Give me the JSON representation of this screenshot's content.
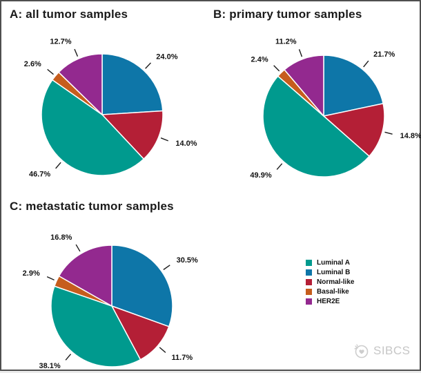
{
  "legend": {
    "items": [
      {
        "label": "Luminal A",
        "color": "#009a8e"
      },
      {
        "label": "Luminal B",
        "color": "#0e76a8"
      },
      {
        "label": "Normal-like",
        "color": "#b41f36"
      },
      {
        "label": "Basal-like",
        "color": "#c65d1d"
      },
      {
        "label": "HER2E",
        "color": "#93298f"
      }
    ]
  },
  "colors": {
    "Luminal A": "#009a8e",
    "Luminal B": "#0e76a8",
    "Normal-like": "#b41f36",
    "Basal-like": "#c65d1d",
    "HER2E": "#93298f"
  },
  "watermark": {
    "text": "SIBCS"
  },
  "chart_data": [
    {
      "type": "pie",
      "title": "A: all tumor samples",
      "start_angle_deg": 0,
      "direction": "clockwise",
      "slices": [
        {
          "name": "Luminal B",
          "value": 24.0,
          "label": "24.0%"
        },
        {
          "name": "Normal-like",
          "value": 14.0,
          "label": "14.0%"
        },
        {
          "name": "Luminal A",
          "value": 46.7,
          "label": "46.7%"
        },
        {
          "name": "Basal-like",
          "value": 2.6,
          "label": "2.6%"
        },
        {
          "name": "HER2E",
          "value": 12.7,
          "label": "12.7%"
        }
      ]
    },
    {
      "type": "pie",
      "title": "B: primary tumor samples",
      "start_angle_deg": 0,
      "direction": "clockwise",
      "slices": [
        {
          "name": "Luminal B",
          "value": 21.7,
          "label": "21.7%"
        },
        {
          "name": "Normal-like",
          "value": 14.8,
          "label": "14.8%"
        },
        {
          "name": "Luminal A",
          "value": 49.9,
          "label": "49.9%"
        },
        {
          "name": "Basal-like",
          "value": 2.4,
          "label": "2.4%"
        },
        {
          "name": "HER2E",
          "value": 11.2,
          "label": "11.2%"
        }
      ]
    },
    {
      "type": "pie",
      "title": "C: metastatic tumor samples",
      "start_angle_deg": 0,
      "direction": "clockwise",
      "slices": [
        {
          "name": "Luminal B",
          "value": 30.5,
          "label": "30.5%"
        },
        {
          "name": "Normal-like",
          "value": 11.7,
          "label": "11.7%"
        },
        {
          "name": "Luminal A",
          "value": 38.1,
          "label": "38.1%"
        },
        {
          "name": "Basal-like",
          "value": 2.9,
          "label": "2.9%"
        },
        {
          "name": "HER2E",
          "value": 16.8,
          "label": "16.8%"
        }
      ]
    }
  ]
}
